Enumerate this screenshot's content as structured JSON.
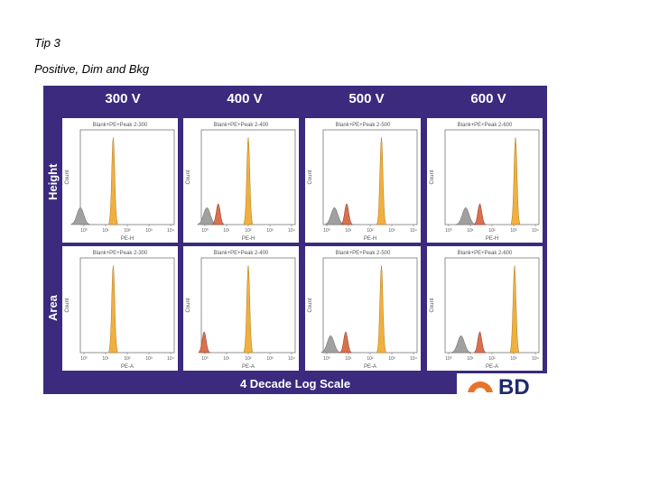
{
  "slide": {
    "title": "Tip 3",
    "subtitle": "Positive, Dim and Bkg"
  },
  "figure": {
    "columns": [
      "300 V",
      "400 V",
      "500 V",
      "600 V"
    ],
    "rows": [
      "Height",
      "Area"
    ],
    "footer": "4 Decade Log Scale",
    "colors": {
      "background": "#3b2a7e",
      "positive_peak": "#f0b040",
      "dim_peak": "#d9704f",
      "background_peak": "#a0a0a0"
    },
    "panels": [
      {
        "row": 0,
        "col": 0,
        "title": "Blank+PE+Peak 2-300",
        "xlabel": "PE-H",
        "ylabel": "Count",
        "ticks": [
          "10⁰",
          "10¹",
          "10²",
          "10³",
          "10⁴"
        ],
        "peaks": {
          "positive": 0.35,
          "dim": null,
          "background": 0.0
        }
      },
      {
        "row": 0,
        "col": 1,
        "title": "Blank+PE+Peak 2-400",
        "xlabel": "PE-H",
        "ylabel": "Count",
        "ticks": [
          "10⁰",
          "10¹",
          "10²",
          "10³",
          "10⁴"
        ],
        "peaks": {
          "positive": 0.5,
          "dim": 0.18,
          "background": 0.06
        }
      },
      {
        "row": 0,
        "col": 2,
        "title": "Blank+PE+Peak 2-500",
        "xlabel": "PE-H",
        "ylabel": "Count",
        "ticks": [
          "10⁰",
          "10¹",
          "10²",
          "10³",
          "10⁴"
        ],
        "peaks": {
          "positive": 0.62,
          "dim": 0.25,
          "background": 0.12
        }
      },
      {
        "row": 0,
        "col": 3,
        "title": "Blank+PE+Peak 2-600",
        "xlabel": "PE-H",
        "ylabel": "Count",
        "ticks": [
          "10⁰",
          "10¹",
          "10²",
          "10³",
          "10⁴"
        ],
        "peaks": {
          "positive": 0.75,
          "dim": 0.37,
          "background": 0.22
        }
      },
      {
        "row": 1,
        "col": 0,
        "title": "Blank+PE+Peak 2-300",
        "xlabel": "PE-A",
        "ylabel": "Count",
        "ticks": [
          "10⁰",
          "10¹",
          "10²",
          "10³",
          "10⁴"
        ],
        "peaks": {
          "positive": 0.35,
          "dim": null,
          "background": null
        }
      },
      {
        "row": 1,
        "col": 1,
        "title": "Blank+PE+Peak 2-400",
        "xlabel": "PE-A",
        "ylabel": "Count",
        "ticks": [
          "10⁰",
          "10¹",
          "10²",
          "10³",
          "10⁴"
        ],
        "peaks": {
          "positive": 0.5,
          "dim": 0.03,
          "background": null
        }
      },
      {
        "row": 1,
        "col": 2,
        "title": "Blank+PE+Peak 2-500",
        "xlabel": "PE-A",
        "ylabel": "Count",
        "ticks": [
          "10⁰",
          "10¹",
          "10²",
          "10³",
          "10⁴"
        ],
        "peaks": {
          "positive": 0.62,
          "dim": 0.24,
          "background": 0.08
        }
      },
      {
        "row": 1,
        "col": 3,
        "title": "Blank+PE+Peak 2-600",
        "xlabel": "PE-A",
        "ylabel": "Count",
        "ticks": [
          "10⁰",
          "10¹",
          "10²",
          "10³",
          "10⁴"
        ],
        "peaks": {
          "positive": 0.74,
          "dim": 0.37,
          "background": 0.17
        }
      }
    ]
  }
}
